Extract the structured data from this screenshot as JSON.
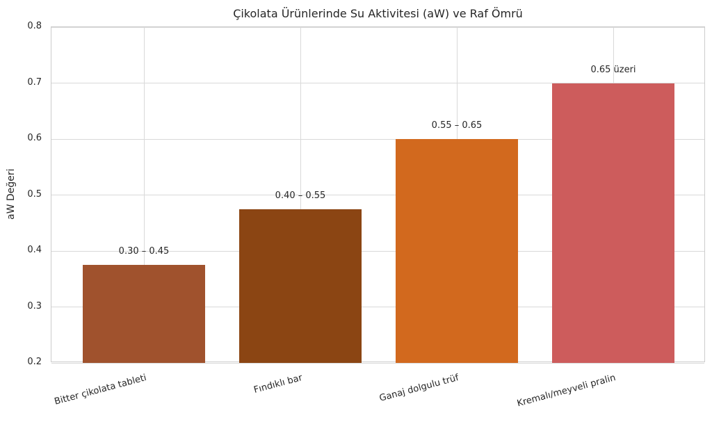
{
  "chart_data": {
    "type": "bar",
    "title": "Çikolata Ürünlerinde Su Aktivitesi (aW) ve Raf Ömrü",
    "xlabel": "",
    "ylabel": "aW Değeri",
    "categories": [
      "Bitter çikolata tableti",
      "Fındıklı bar",
      "Ganaj dolgulu trüf",
      "Kremalı/meyveli pralin"
    ],
    "values": [
      0.375,
      0.475,
      0.6,
      0.7
    ],
    "bar_labels": [
      "0.30 – 0.45",
      "0.40 – 0.55",
      "0.55 – 0.65",
      "0.65 üzeri"
    ],
    "bar_colors": [
      "#A0522D",
      "#8B4513",
      "#D2691E",
      "#CD5C5C"
    ],
    "ylim": [
      0.2,
      0.8
    ],
    "yticks": [
      "0.2",
      "0.3",
      "0.4",
      "0.5",
      "0.6",
      "0.7",
      "0.8"
    ],
    "grid": true,
    "legend": false,
    "colors": {
      "text": "#262626",
      "grid": "#d9d9d9",
      "spine": "#cccccc",
      "background": "#ffffff"
    }
  }
}
